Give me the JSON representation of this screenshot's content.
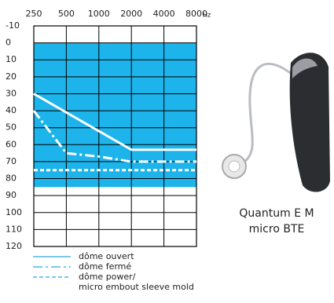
{
  "chart_data": {
    "type": "line",
    "x": [
      250,
      500,
      1000,
      2000,
      4000,
      8000
    ],
    "x_unit": "Hz",
    "xlim": [
      250,
      8000
    ],
    "xticks": [
      250,
      500,
      1000,
      2000,
      4000,
      8000
    ],
    "log_x": true,
    "ylim": [
      -10,
      120
    ],
    "yticks": [
      -10,
      0,
      10,
      20,
      30,
      40,
      50,
      60,
      70,
      80,
      90,
      100,
      110,
      120
    ],
    "y_inverted": true,
    "grid": true,
    "shaded_range": [
      0,
      85
    ],
    "shaded_color": "#1cb4ea",
    "legend_line_color": "#2aa6de",
    "series": [
      {
        "name": "dôme ouvert",
        "color": "#ffffff",
        "style": "solid",
        "values": [
          30,
          41,
          52,
          63,
          63,
          63
        ]
      },
      {
        "name": "dôme fermé",
        "color": "#ffffff",
        "style": "dashdot",
        "values": [
          40,
          65,
          67,
          70,
          70,
          70
        ]
      },
      {
        "name": "dôme power/\nmicro embout sleeve mold",
        "color": "#ffffff",
        "style": "dotted",
        "values": [
          75,
          75,
          75,
          75,
          75,
          75
        ]
      }
    ]
  },
  "product": {
    "caption": [
      "Quantum E M",
      "micro BTE"
    ]
  }
}
